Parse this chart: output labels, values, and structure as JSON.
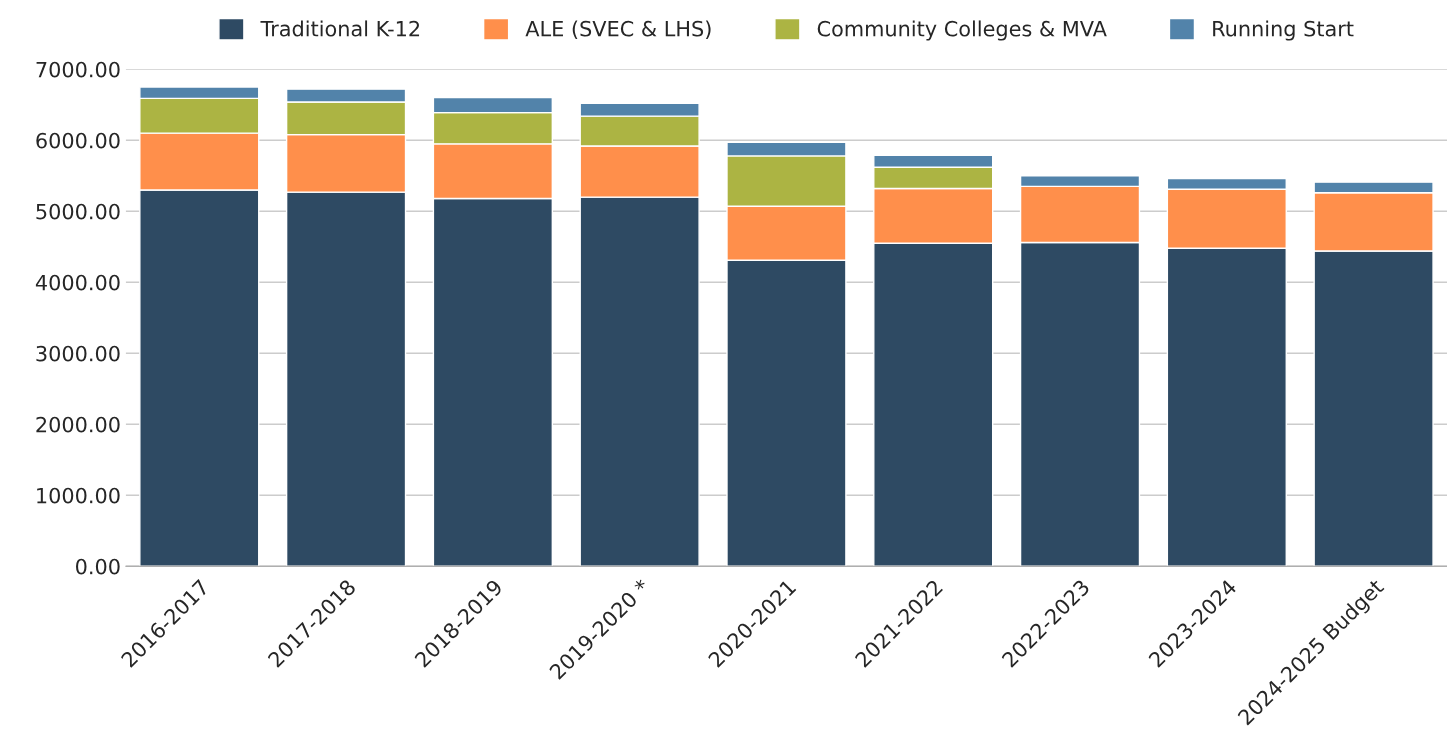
{
  "chart_data": {
    "type": "bar",
    "stacked": true,
    "categories": [
      "2016-2017",
      "2017-2018",
      "2018-2019",
      "2019-2020 *",
      "2020-2021",
      "2021-2022",
      "2022-2023",
      "2023-2024",
      "2024-2025 Budget"
    ],
    "series": [
      {
        "name": "Traditional K-12",
        "color": "#2e4a63",
        "values": [
          5300,
          5270,
          5180,
          5200,
          4310,
          4550,
          4560,
          4480,
          4440
        ]
      },
      {
        "name": "ALE (SVEC & LHS)",
        "color": "#ff8f4b",
        "values": [
          800,
          810,
          770,
          720,
          760,
          770,
          790,
          830,
          820
        ]
      },
      {
        "name": "Community Colleges & MVA",
        "color": "#acb443",
        "values": [
          490,
          460,
          440,
          420,
          710,
          300,
          null,
          null,
          null
        ]
      },
      {
        "name": "Running Start",
        "color": "#5283aa",
        "values": [
          160,
          180,
          210,
          180,
          190,
          170,
          150,
          150,
          150
        ]
      }
    ],
    "ylim": [
      0,
      7000
    ],
    "yticks": [
      {
        "value": 0,
        "label": "0.00"
      },
      {
        "value": 1000,
        "label": "1000.00"
      },
      {
        "value": 2000,
        "label": "2000.00"
      },
      {
        "value": 3000,
        "label": "3000.00"
      },
      {
        "value": 4000,
        "label": "4000.00"
      },
      {
        "value": 5000,
        "label": "5000.00"
      },
      {
        "value": 6000,
        "label": "6000.00"
      },
      {
        "value": 7000,
        "label": "7000.00"
      }
    ],
    "grid": "y",
    "legend": "top"
  }
}
